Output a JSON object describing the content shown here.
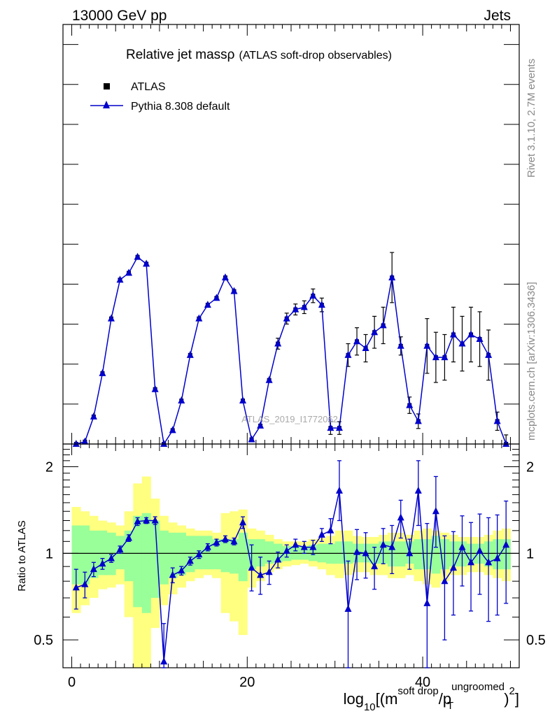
{
  "header": {
    "left": "13000 GeV pp",
    "right": "Jets"
  },
  "side_labels": {
    "top": "Rivet 3.1.10,  2.7M events",
    "bottom": "mcplots.cern.ch [arXiv:1306.3436]"
  },
  "watermark": "ATLAS_2019_I1772062",
  "colors": {
    "mc": "#0000cc",
    "band_inner": "#99ff99",
    "band_outer": "#ffff80",
    "data": "#000000"
  },
  "chart_data": [
    {
      "type": "line",
      "panel": "main",
      "title": "Relative jet mass ρ",
      "title_main": "Relative jet massρ",
      "title_sub": "(ATLAS soft-drop observables)",
      "legend": [
        "ATLAS",
        "Pythia 8.308 default"
      ],
      "legend_placement": "top-left",
      "x": [
        0.5,
        1.5,
        2.5,
        3.5,
        4.5,
        5.5,
        6.5,
        7.5,
        8.5,
        9.5,
        10.5,
        11.5,
        12.5,
        13.5,
        14.5,
        15.5,
        16.5,
        17.5,
        18.5,
        19.5,
        20.5,
        21.5,
        22.5,
        23.5,
        24.5,
        25.5,
        26.5,
        27.5,
        28.5,
        29.5,
        30.5,
        31.5,
        32.5,
        33.5,
        34.5,
        35.5,
        36.5,
        37.5,
        38.5,
        39.5,
        40.5,
        41.5,
        42.5,
        43.5,
        44.5,
        45.5,
        46.5,
        47.5,
        48.5,
        49.5
      ],
      "series": [
        {
          "name": "Pythia 8.308 default",
          "values": [
            0.0,
            0.005,
            0.06,
            0.155,
            0.275,
            0.36,
            0.375,
            0.41,
            0.395,
            0.12,
            0.0,
            0.03,
            0.095,
            0.195,
            0.275,
            0.305,
            0.32,
            0.365,
            0.335,
            0.095,
            0.01,
            0.04,
            0.14,
            0.22,
            0.275,
            0.295,
            0.3,
            0.325,
            0.305,
            0.035,
            0.035,
            0.195,
            0.225,
            0.21,
            0.245,
            0.26,
            0.365,
            0.215,
            0.085,
            0.05,
            0.215,
            0.19,
            0.19,
            0.24,
            0.22,
            0.24,
            0.23,
            0.195,
            0.05,
            0.0
          ],
          "marker": "triangle"
        },
        {
          "name": "ATLAS",
          "values": [
            0.0,
            0.005,
            0.06,
            0.155,
            0.275,
            0.36,
            0.375,
            0.41,
            0.395,
            0.12,
            0.0,
            0.03,
            0.095,
            0.195,
            0.275,
            0.305,
            0.32,
            0.365,
            0.335,
            0.095,
            0.01,
            0.04,
            0.14,
            0.22,
            0.275,
            0.295,
            0.3,
            0.325,
            0.305,
            0.035,
            0.035,
            0.195,
            0.225,
            0.21,
            0.245,
            0.26,
            0.365,
            0.215,
            0.085,
            0.05,
            0.215,
            0.19,
            0.19,
            0.24,
            0.22,
            0.24,
            0.23,
            0.195,
            0.05,
            0.0
          ],
          "errors": [
            0,
            0,
            0,
            0,
            0,
            0,
            0,
            0,
            0,
            0,
            0,
            0,
            0,
            0,
            0,
            0,
            0,
            0,
            0,
            0,
            0,
            0,
            0,
            0.012,
            0.012,
            0.012,
            0.014,
            0.015,
            0.015,
            0.014,
            0.014,
            0.025,
            0.03,
            0.03,
            0.035,
            0.04,
            0.055,
            0.02,
            0.018,
            0.016,
            0.06,
            0.055,
            0.05,
            0.06,
            0.06,
            0.06,
            0.06,
            0.055,
            0.02,
            0.02
          ],
          "marker": "square"
        }
      ],
      "xlim": [
        -1,
        51
      ],
      "ylim": [
        0,
        0.92
      ],
      "grid": false
    },
    {
      "type": "line",
      "panel": "ratio",
      "ylabel": "Ratio to ATLAS",
      "xlabel_parts": {
        "base": "log",
        "base_sub": "10",
        "open": "[(m",
        "sup1": "soft drop",
        "mid": "/p",
        "sub2": "T",
        "sup2": "ungroomed",
        "close": ")",
        "sup3": "2",
        "end": "]"
      },
      "x_ticks": [
        "0",
        "20",
        "40"
      ],
      "x_tick_values": [
        0,
        20,
        40
      ],
      "y_ticks": [
        "0.5",
        "1",
        "2"
      ],
      "y_tick_values": [
        0.5,
        1,
        2
      ],
      "y_scale": "log",
      "xlim": [
        -1,
        51
      ],
      "ylim": [
        0.4,
        2.4
      ],
      "series": [
        {
          "name": "Pythia 8.308 default",
          "values": [
            0.76,
            0.78,
            0.88,
            0.92,
            0.96,
            1.03,
            1.13,
            1.29,
            1.3,
            1.3,
            0.42,
            0.84,
            0.87,
            0.94,
            0.99,
            1.05,
            1.09,
            1.12,
            1.1,
            1.28,
            0.89,
            0.84,
            0.86,
            0.95,
            1.02,
            1.07,
            1.05,
            1.05,
            1.16,
            1.2,
            1.65,
            0.64,
            1.01,
            1.0,
            0.9,
            1.07,
            1.05,
            1.33,
            1.0,
            1.65,
            0.67,
            1.4,
            0.8,
            0.89,
            1.05,
            0.93,
            1.02,
            0.93,
            0.96,
            1.07
          ],
          "errors_up": [
            0.12,
            0.08,
            0.05,
            0.04,
            0.03,
            0.03,
            0.03,
            0.04,
            0.03,
            0.04,
            0.15,
            0.05,
            0.03,
            0.03,
            0.03,
            0.03,
            0.03,
            0.03,
            0.03,
            0.06,
            0.18,
            0.13,
            0.08,
            0.06,
            0.05,
            0.05,
            0.05,
            0.06,
            0.06,
            0.12,
            0.45,
            0.3,
            0.2,
            0.18,
            0.15,
            0.15,
            0.2,
            0.2,
            0.12,
            0.45,
            0.6,
            0.45,
            0.35,
            0.3,
            0.3,
            0.35,
            0.35,
            0.4,
            0.4,
            0.45
          ],
          "errors_down": [
            0.12,
            0.08,
            0.05,
            0.04,
            0.03,
            0.03,
            0.03,
            0.04,
            0.03,
            0.04,
            0.1,
            0.05,
            0.03,
            0.03,
            0.03,
            0.03,
            0.03,
            0.03,
            0.03,
            0.06,
            0.15,
            0.12,
            0.08,
            0.06,
            0.05,
            0.05,
            0.05,
            0.06,
            0.06,
            0.12,
            0.35,
            0.28,
            0.2,
            0.18,
            0.15,
            0.15,
            0.2,
            0.2,
            0.12,
            0.4,
            0.35,
            0.35,
            0.3,
            0.28,
            0.28,
            0.3,
            0.3,
            0.35,
            0.35,
            0.4
          ]
        }
      ],
      "band_inner": {
        "up": [
          1.25,
          1.25,
          1.2,
          1.2,
          1.18,
          1.15,
          1.2,
          1.35,
          1.38,
          1.3,
          1.2,
          1.18,
          1.18,
          1.15,
          1.15,
          1.15,
          1.12,
          1.12,
          1.12,
          1.18,
          1.12,
          1.12,
          1.1,
          1.08,
          1.06,
          1.06,
          1.06,
          1.07,
          1.08,
          1.08,
          1.1,
          1.1,
          1.08,
          1.08,
          1.08,
          1.1,
          1.1,
          1.1,
          1.1,
          1.12,
          1.12,
          1.15,
          1.12,
          1.1,
          1.1,
          1.08,
          1.08,
          1.1,
          1.12,
          1.12
        ],
        "down": [
          0.78,
          0.78,
          0.82,
          0.84,
          0.84,
          0.88,
          0.8,
          0.65,
          0.62,
          0.7,
          0.78,
          0.82,
          0.84,
          0.86,
          0.88,
          0.88,
          0.88,
          0.86,
          0.85,
          0.8,
          0.88,
          0.9,
          0.92,
          0.93,
          0.94,
          0.95,
          0.95,
          0.94,
          0.93,
          0.92,
          0.92,
          0.92,
          0.93,
          0.93,
          0.92,
          0.92,
          0.9,
          0.9,
          0.92,
          0.88,
          0.88,
          0.85,
          0.88,
          0.9,
          0.9,
          0.92,
          0.92,
          0.9,
          0.88,
          0.88
        ]
      },
      "band_outer": {
        "up": [
          1.45,
          1.4,
          1.35,
          1.3,
          1.28,
          1.25,
          1.4,
          1.75,
          1.85,
          1.55,
          1.35,
          1.28,
          1.25,
          1.22,
          1.2,
          1.2,
          1.18,
          1.38,
          1.4,
          1.42,
          1.22,
          1.2,
          1.16,
          1.12,
          1.1,
          1.1,
          1.1,
          1.12,
          1.13,
          1.15,
          1.2,
          1.2,
          1.15,
          1.14,
          1.14,
          1.16,
          1.18,
          1.18,
          1.16,
          1.2,
          1.22,
          1.2,
          1.18,
          1.16,
          1.14,
          1.14,
          1.14,
          1.16,
          1.2,
          1.22
        ],
        "down": [
          0.62,
          0.66,
          0.7,
          0.75,
          0.76,
          0.78,
          0.6,
          0.38,
          0.36,
          0.55,
          0.66,
          0.72,
          0.76,
          0.8,
          0.82,
          0.84,
          0.82,
          0.62,
          0.58,
          0.52,
          0.76,
          0.8,
          0.86,
          0.88,
          0.9,
          0.91,
          0.92,
          0.9,
          0.88,
          0.84,
          0.82,
          0.84,
          0.86,
          0.86,
          0.84,
          0.84,
          0.82,
          0.82,
          0.84,
          0.8,
          0.78,
          0.76,
          0.8,
          0.84,
          0.84,
          0.86,
          0.86,
          0.84,
          0.82,
          0.8
        ]
      }
    }
  ]
}
